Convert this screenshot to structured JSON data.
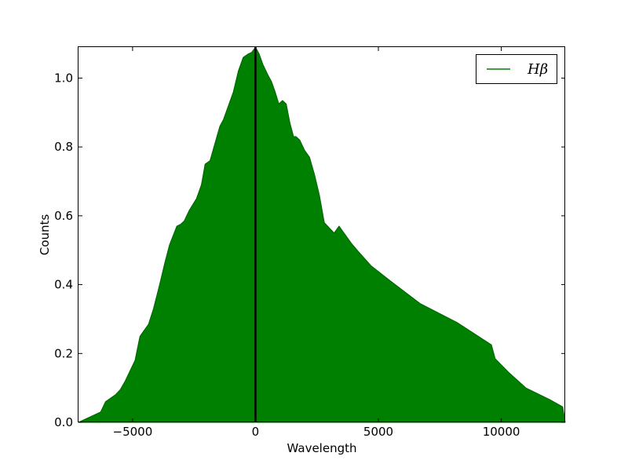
{
  "chart_data": {
    "type": "area",
    "title": "",
    "xlabel": "Wavelength",
    "ylabel": "Counts",
    "xlim": [
      -7200,
      12600
    ],
    "ylim": [
      0.0,
      1.09
    ],
    "x_ticks": [
      -5000,
      0,
      5000,
      10000
    ],
    "x_tick_labels": [
      "−5000",
      "0",
      "5000",
      "10000"
    ],
    "y_ticks": [
      0.0,
      0.2,
      0.4,
      0.6,
      0.8,
      1.0
    ],
    "y_tick_labels": [
      "0.0",
      "0.2",
      "0.4",
      "0.6",
      "0.8",
      "1.0"
    ],
    "grid": false,
    "legend_position": "top-right",
    "colors": {
      "fill": "#008000",
      "line": "#006400",
      "marker": "#000000",
      "frame": "#000000"
    },
    "series": [
      {
        "name": "Hβ",
        "x": [
          -7200,
          -6900,
          -6600,
          -6300,
          -6100,
          -5900,
          -5700,
          -5500,
          -5300,
          -5100,
          -4900,
          -4700,
          -4500,
          -4350,
          -4150,
          -3900,
          -3700,
          -3500,
          -3200,
          -3050,
          -2900,
          -2700,
          -2400,
          -2200,
          -2050,
          -1850,
          -1650,
          -1450,
          -1300,
          -1150,
          -900,
          -700,
          -500,
          -300,
          -150,
          0,
          150,
          300,
          500,
          650,
          800,
          950,
          1100,
          1250,
          1400,
          1550,
          1650,
          1800,
          2000,
          2200,
          2400,
          2600,
          2800,
          3000,
          3200,
          3400,
          3550,
          3700,
          3900,
          4200,
          4700,
          5500,
          6700,
          8200,
          9600,
          9750,
          10300,
          11000,
          12000,
          12500,
          12600
        ],
        "y": [
          0.0,
          0.01,
          0.02,
          0.03,
          0.06,
          0.07,
          0.08,
          0.095,
          0.12,
          0.15,
          0.18,
          0.25,
          0.27,
          0.285,
          0.33,
          0.4,
          0.46,
          0.515,
          0.57,
          0.575,
          0.585,
          0.615,
          0.65,
          0.69,
          0.75,
          0.76,
          0.81,
          0.86,
          0.88,
          0.91,
          0.96,
          1.02,
          1.06,
          1.07,
          1.075,
          1.09,
          1.07,
          1.04,
          1.01,
          0.99,
          0.96,
          0.925,
          0.935,
          0.925,
          0.87,
          0.83,
          0.83,
          0.82,
          0.79,
          0.77,
          0.72,
          0.66,
          0.58,
          0.565,
          0.55,
          0.57,
          0.555,
          0.54,
          0.52,
          0.495,
          0.455,
          0.41,
          0.345,
          0.29,
          0.225,
          0.185,
          0.145,
          0.1,
          0.065,
          0.045,
          0.0
        ]
      }
    ],
    "reference_line": {
      "x": 0
    }
  }
}
